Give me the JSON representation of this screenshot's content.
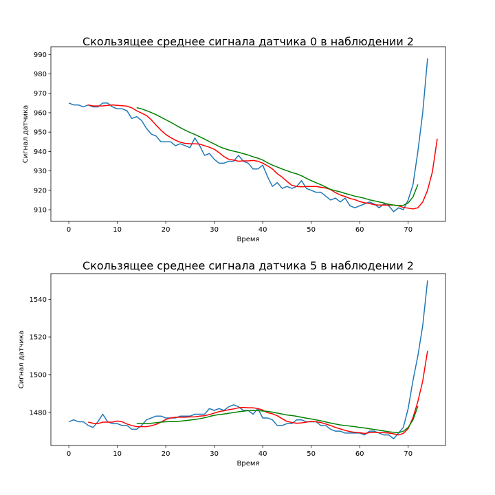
{
  "chart_data": [
    {
      "type": "line",
      "title": "Скользящее среднее сигнала датчика 0 в наблюдении 2",
      "xlabel": "Время",
      "ylabel": "Сигнал датчика",
      "xlim": [
        -3.7,
        77.7
      ],
      "ylim": [
        904,
        994
      ],
      "xticks": [
        0,
        10,
        20,
        30,
        40,
        50,
        60,
        70
      ],
      "yticks": [
        910,
        920,
        930,
        940,
        950,
        960,
        970,
        980,
        990
      ],
      "grid": false,
      "series": [
        {
          "color": "#1f77b4",
          "x_start": 0,
          "values": [
            965,
            964,
            964,
            963,
            964,
            963,
            963,
            965,
            965,
            963,
            962,
            962,
            961,
            957,
            958,
            956,
            952,
            949,
            948,
            945,
            945,
            945,
            943,
            944,
            943,
            942,
            947,
            943,
            938,
            939,
            936,
            934,
            934,
            935,
            935,
            938,
            935,
            934,
            931,
            931,
            933,
            927,
            922,
            924,
            921,
            922,
            921,
            922,
            925,
            921,
            920,
            919,
            919,
            917,
            915,
            916,
            914,
            916,
            912,
            911,
            912,
            913,
            914,
            913,
            911,
            913,
            912,
            909,
            911,
            910,
            915,
            923,
            940,
            960,
            988
          ]
        },
        {
          "color": "#ff0000",
          "x_start": 4,
          "values": [
            964,
            963.5,
            963.5,
            963.5,
            963.8,
            964,
            963.8,
            963.6,
            963.4,
            962.5,
            961,
            959.8,
            958.6,
            956.4,
            953.6,
            951,
            948.8,
            947.2,
            945.8,
            944.8,
            944.2,
            944,
            944,
            943.8,
            943,
            942.2,
            941.2,
            939.4,
            937.4,
            936,
            935.6,
            935,
            935.2,
            935.2,
            935.4,
            935,
            934,
            932.6,
            931,
            928.6,
            926.8,
            924.6,
            922.6,
            922,
            921.8,
            922,
            922,
            922,
            921.6,
            921.2,
            920.4,
            918.8,
            917.6,
            916.8,
            915.8,
            915.2,
            914.2,
            913.6,
            913.2,
            912.6,
            912.4,
            912.4,
            912.4,
            912.4,
            912,
            911.2,
            910.8,
            910.4,
            911,
            914,
            920,
            929.6,
            946.6
          ]
        },
        {
          "color": "#008000",
          "x_start": 14,
          "values": [
            962.6,
            962,
            961.1,
            960.1,
            959,
            957.7,
            956.4,
            955.1,
            953.7,
            952.3,
            951,
            949.8,
            948.8,
            947.6,
            946.4,
            945.1,
            943.9,
            942.6,
            941.6,
            940.8,
            940.2,
            939.6,
            938.9,
            938.2,
            937.3,
            936.6,
            935.6,
            934.2,
            933,
            932,
            931,
            930.1,
            929.2,
            928.5,
            927.5,
            926.2,
            925,
            923.9,
            922.9,
            921.7,
            920.5,
            919.8,
            919.2,
            918.4,
            917.7,
            917,
            916.5,
            915.9,
            915.1,
            914.6,
            914,
            913.5,
            912.8,
            912.4,
            912.1,
            912.3,
            913.5,
            916.6,
            923
          ]
        }
      ]
    },
    {
      "type": "line",
      "title": "Скользящее среднее сигнала датчика 5 в наблюдении 2",
      "xlabel": "Время",
      "ylabel": "Сигнал датчика",
      "xlim": [
        -3.7,
        77.7
      ],
      "ylim": [
        1462.4,
        1553.6
      ],
      "xticks": [
        0,
        10,
        20,
        30,
        40,
        50,
        60,
        70
      ],
      "yticks": [
        1480,
        1500,
        1520,
        1540
      ],
      "grid": false,
      "series": [
        {
          "color": "#1f77b4",
          "x_start": 0,
          "values": [
            1475,
            1476,
            1475,
            1475,
            1473,
            1472,
            1475,
            1479,
            1475,
            1474,
            1474,
            1473,
            1473,
            1471,
            1471,
            1473,
            1476,
            1477,
            1478,
            1478,
            1477,
            1477,
            1477,
            1478,
            1478,
            1478,
            1479,
            1479,
            1479,
            1482,
            1481,
            1482,
            1481,
            1483,
            1484,
            1483,
            1481,
            1481,
            1479,
            1482,
            1477,
            1477,
            1476,
            1473,
            1473,
            1474,
            1474,
            1476,
            1476,
            1475,
            1475,
            1475,
            1473,
            1473,
            1471,
            1470,
            1470,
            1469,
            1469,
            1469,
            1469,
            1468,
            1470,
            1470,
            1469,
            1468,
            1468,
            1466,
            1469,
            1472,
            1482,
            1497,
            1510,
            1526,
            1550
          ]
        },
        {
          "color": "#ff0000",
          "x_start": 4,
          "values": [
            1474.8,
            1474.2,
            1474,
            1474.8,
            1474.8,
            1474.8,
            1475.4,
            1475,
            1473.8,
            1473,
            1472.4,
            1472.4,
            1472.4,
            1472.9,
            1473.6,
            1474.8,
            1476.2,
            1477,
            1477.4,
            1477.4,
            1477.4,
            1477.6,
            1477.6,
            1478,
            1478.2,
            1478.8,
            1479.6,
            1480.4,
            1480.8,
            1481.4,
            1481.8,
            1482.4,
            1482.6,
            1482.4,
            1482.4,
            1482,
            1481.2,
            1479.8,
            1479.2,
            1478.2,
            1476.6,
            1475.2,
            1474.6,
            1474.2,
            1474.4,
            1474.8,
            1475.2,
            1475,
            1474.6,
            1473.8,
            1473,
            1472,
            1471.2,
            1470.4,
            1469.8,
            1469.4,
            1469.2,
            1468.8,
            1469.2,
            1469.4,
            1469.2,
            1469.2,
            1469,
            1468.6,
            1468,
            1468.8,
            1471.4,
            1477.2,
            1485.8,
            1496.6,
            1512.6
          ]
        },
        {
          "color": "#008000",
          "x_start": 14,
          "values": [
            1474.2,
            1474,
            1474,
            1474.2,
            1474.5,
            1474.8,
            1475,
            1475.1,
            1475.1,
            1475.3,
            1475.6,
            1475.9,
            1476.2,
            1476.6,
            1477.1,
            1477.8,
            1478.4,
            1478.8,
            1479.1,
            1479.5,
            1479.9,
            1480.3,
            1480.6,
            1480.9,
            1481,
            1480.9,
            1480.7,
            1480.5,
            1480.1,
            1479.6,
            1479.1,
            1478.6,
            1478.3,
            1477.9,
            1477.4,
            1476.9,
            1476.5,
            1476,
            1475.5,
            1474.9,
            1474.3,
            1473.8,
            1473.3,
            1473,
            1472.7,
            1472.4,
            1472,
            1471.7,
            1471.3,
            1470.9,
            1470.5,
            1470.1,
            1469.7,
            1469.4,
            1469.2,
            1470,
            1472,
            1476,
            1483.3
          ]
        }
      ]
    }
  ]
}
